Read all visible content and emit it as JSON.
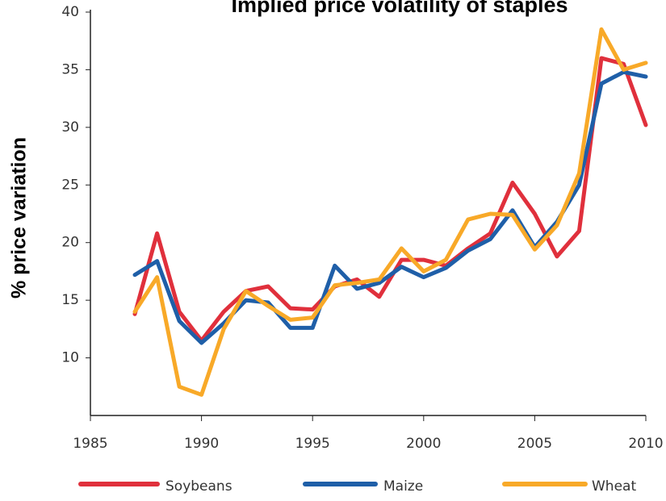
{
  "chart_data": {
    "type": "line",
    "title": "Implied price volatility of staples",
    "y_label": "% price variation",
    "x": [
      1987,
      1988,
      1989,
      1990,
      1991,
      1992,
      1993,
      1994,
      1995,
      1996,
      1997,
      1998,
      1999,
      2000,
      2001,
      2002,
      2003,
      2004,
      2005,
      2006,
      2007,
      2008,
      2009,
      2010
    ],
    "series": [
      {
        "name": "Soybeans",
        "color": "#e0303c",
        "values": [
          13.8,
          20.8,
          14,
          11.5,
          14,
          15.8,
          16.2,
          14.3,
          14.2,
          16.2,
          16.8,
          15.3,
          18.5,
          18.5,
          18,
          19.5,
          20.8,
          25.2,
          22.5,
          18.8,
          21,
          36,
          35.5,
          30.2
        ]
      },
      {
        "name": "Maize",
        "color": "#1f5fa8",
        "values": [
          17.2,
          18.4,
          13.2,
          11.3,
          13,
          15,
          14.8,
          12.6,
          12.6,
          18,
          16,
          16.5,
          17.9,
          17,
          17.8,
          19.3,
          20.3,
          22.8,
          19.6,
          21.8,
          25,
          33.8,
          34.8,
          34.4
        ]
      },
      {
        "name": "Wheat",
        "color": "#f8a928",
        "values": [
          14,
          17,
          7.5,
          6.8,
          12.5,
          15.8,
          14.5,
          13.3,
          13.5,
          16.3,
          16.5,
          16.8,
          19.5,
          17.5,
          18.5,
          22,
          22.5,
          22.4,
          19.4,
          21.5,
          26,
          38.5,
          35,
          35.6
        ]
      }
    ],
    "xlim": [
      1985,
      2010
    ],
    "xticks": [
      1985,
      1990,
      1995,
      2000,
      2005,
      2010
    ],
    "ylim": [
      5,
      40
    ],
    "yticks": [
      10,
      15,
      20,
      25,
      30,
      35,
      40
    ]
  }
}
